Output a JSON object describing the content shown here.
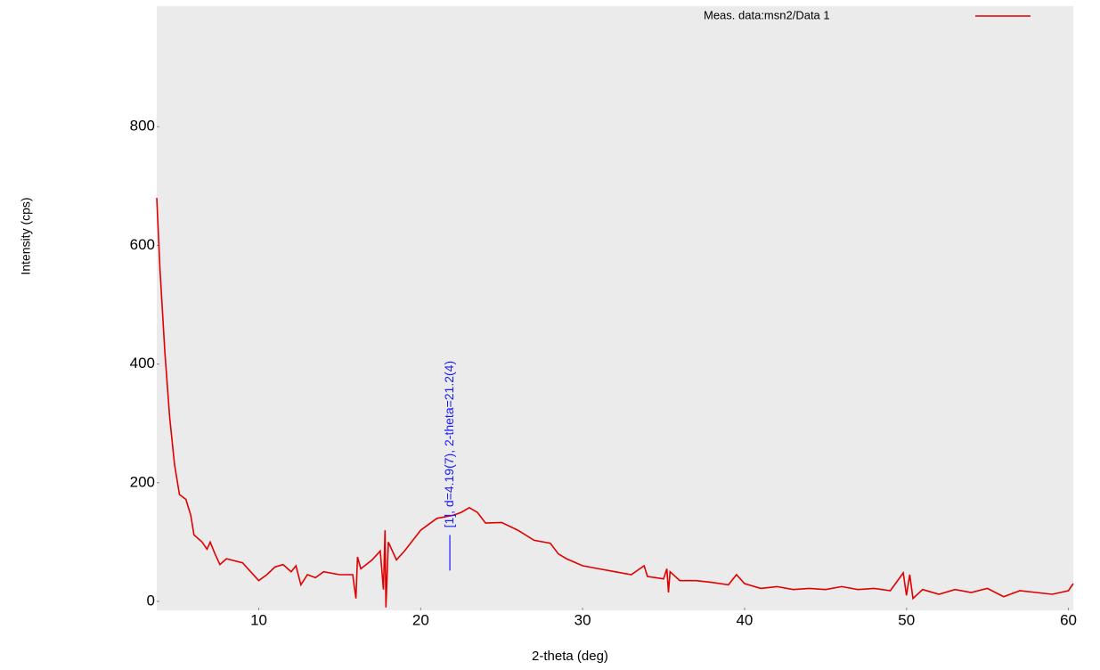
{
  "chart_data": {
    "type": "line",
    "xlabel": "2-theta (deg)",
    "ylabel": "Intensity (cps)",
    "xlim": [
      3.7,
      60.3
    ],
    "xticks": [
      10,
      20,
      30,
      40,
      50,
      60
    ],
    "ylim": [
      -15,
      1003
    ],
    "yticks": [
      0,
      200,
      400,
      600,
      800
    ],
    "legend": "top-right",
    "series": [
      {
        "name": "Meas. data:msn2/Data 1",
        "color": "#e00000",
        "x": [
          3.7,
          3.9,
          4.2,
          4.5,
          4.8,
          5.1,
          5.5,
          5.8,
          6.0,
          6.5,
          6.8,
          7.0,
          7.3,
          7.6,
          8.0,
          9.0,
          9.5,
          10.0,
          10.5,
          11.0,
          11.5,
          12.0,
          12.3,
          12.6,
          13.0,
          13.5,
          14.0,
          15.0,
          15.8,
          16.0,
          16.1,
          16.3,
          17.0,
          17.5,
          17.7,
          17.8,
          17.85,
          18.0,
          18.5,
          19.0,
          20.0,
          21.0,
          22.0,
          22.5,
          23.0,
          23.5,
          24.0,
          25.0,
          26.0,
          27.0,
          28.0,
          28.5,
          29.0,
          30.0,
          31.0,
          32.0,
          33.0,
          33.8,
          34.0,
          35.0,
          35.2,
          35.3,
          35.4,
          36.0,
          37.0,
          38.0,
          39.0,
          39.5,
          40.0,
          41.0,
          42.0,
          43.0,
          44.0,
          45.0,
          46.0,
          47.0,
          48.0,
          49.0,
          49.8,
          50.0,
          50.2,
          50.4,
          51.0,
          52.0,
          53.0,
          54.0,
          55.0,
          56.0,
          57.0,
          58.0,
          59.0,
          60.0,
          60.3
        ],
        "values": [
          680,
          560,
          420,
          310,
          230,
          180,
          172,
          145,
          112,
          100,
          88,
          100,
          80,
          62,
          72,
          65,
          50,
          35,
          45,
          58,
          62,
          50,
          60,
          28,
          45,
          40,
          50,
          45,
          45,
          5,
          75,
          55,
          70,
          85,
          20,
          120,
          -10,
          100,
          70,
          85,
          120,
          140,
          145,
          150,
          158,
          150,
          132,
          133,
          120,
          103,
          98,
          80,
          72,
          60,
          55,
          50,
          45,
          60,
          42,
          38,
          55,
          15,
          50,
          35,
          35,
          32,
          28,
          45,
          30,
          22,
          25,
          20,
          22,
          20,
          25,
          20,
          22,
          18,
          48,
          10,
          45,
          5,
          20,
          12,
          20,
          15,
          22,
          8,
          18,
          15,
          12,
          18,
          30
        ]
      }
    ],
    "annotations": [
      {
        "text": "[1], d=4.19(7), 2-theta=21.2(4)",
        "color": "#1a1aff",
        "x": 21.8,
        "y": [
          52,
          112
        ]
      }
    ]
  }
}
